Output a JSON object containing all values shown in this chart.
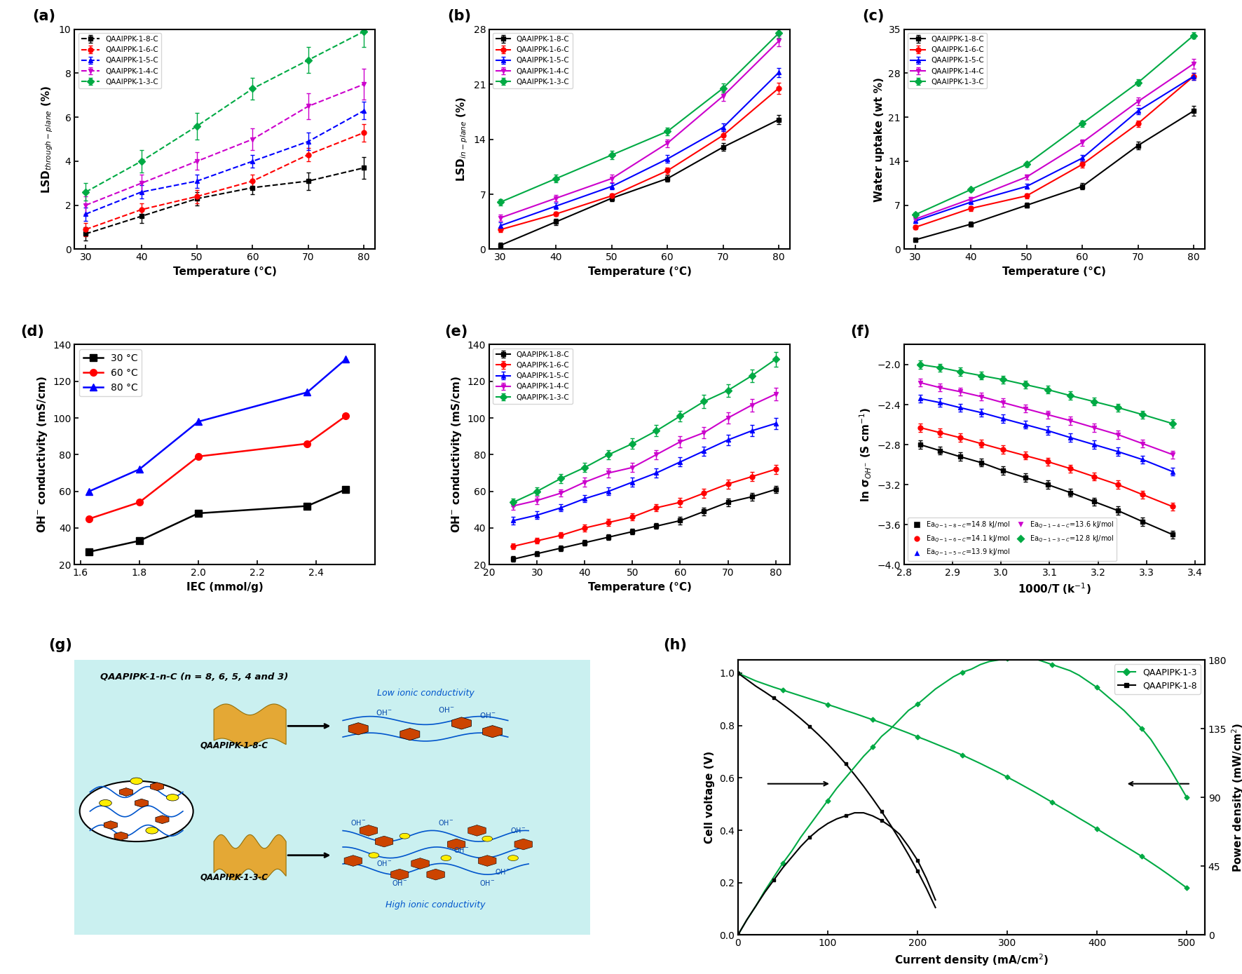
{
  "temp": [
    30,
    40,
    50,
    60,
    70,
    80
  ],
  "colors": {
    "8C": "#000000",
    "6C": "#ff0000",
    "5C": "#0000ff",
    "4C": "#cc00cc",
    "3C": "#00aa44"
  },
  "markers": {
    "8C": "s",
    "6C": "o",
    "5C": "^",
    "4C": "v",
    "3C": "D"
  },
  "panel_a": {
    "ylabel": "LSD$_{through-plane}$ (%)",
    "xlabel": "Temperature (°C)",
    "ylim": [
      0,
      10
    ],
    "yticks": [
      0,
      2,
      4,
      6,
      8,
      10
    ],
    "data": {
      "8C": [
        0.7,
        1.5,
        2.3,
        2.8,
        3.1,
        3.7
      ],
      "6C": [
        0.9,
        1.8,
        2.4,
        3.1,
        4.3,
        5.3
      ],
      "5C": [
        1.6,
        2.6,
        3.1,
        4.0,
        4.9,
        6.3
      ],
      "4C": [
        2.0,
        3.0,
        4.0,
        5.0,
        6.5,
        7.5
      ],
      "3C": [
        2.6,
        4.0,
        5.6,
        7.3,
        8.6,
        9.9
      ]
    },
    "errors": {
      "8C": [
        0.3,
        0.3,
        0.3,
        0.3,
        0.4,
        0.5
      ],
      "6C": [
        0.3,
        0.3,
        0.3,
        0.3,
        0.3,
        0.4
      ],
      "5C": [
        0.3,
        0.3,
        0.3,
        0.3,
        0.4,
        0.4
      ],
      "4C": [
        0.4,
        0.4,
        0.4,
        0.5,
        0.6,
        0.7
      ],
      "3C": [
        0.4,
        0.5,
        0.6,
        0.5,
        0.6,
        0.7
      ]
    }
  },
  "panel_b": {
    "ylabel": "LSD$_{in-plane}$ (%)",
    "xlabel": "Temperature (°C)",
    "ylim": [
      0,
      28
    ],
    "yticks": [
      0,
      7,
      14,
      21,
      28
    ],
    "data": {
      "8C": [
        0.5,
        3.5,
        6.5,
        9.0,
        13.0,
        16.5
      ],
      "6C": [
        2.5,
        4.5,
        6.8,
        10.0,
        14.5,
        20.5
      ],
      "5C": [
        3.0,
        5.5,
        8.0,
        11.5,
        15.5,
        22.5
      ],
      "4C": [
        4.0,
        6.5,
        9.0,
        13.5,
        19.5,
        26.5
      ],
      "3C": [
        6.0,
        9.0,
        12.0,
        15.0,
        20.5,
        27.5
      ]
    },
    "errors": {
      "8C": [
        0.3,
        0.4,
        0.4,
        0.4,
        0.5,
        0.6
      ],
      "6C": [
        0.3,
        0.3,
        0.3,
        0.4,
        0.5,
        0.7
      ],
      "5C": [
        0.4,
        0.4,
        0.4,
        0.5,
        0.5,
        0.6
      ],
      "4C": [
        0.4,
        0.4,
        0.5,
        0.5,
        0.6,
        0.7
      ],
      "3C": [
        0.4,
        0.5,
        0.5,
        0.5,
        0.6,
        0.6
      ]
    }
  },
  "panel_c": {
    "ylabel": "Water uptake (wt %)",
    "xlabel": "Temperature (°C)",
    "ylim": [
      0,
      35
    ],
    "yticks": [
      0,
      7,
      14,
      21,
      28,
      35
    ],
    "data": {
      "8C": [
        1.5,
        4.0,
        7.0,
        10.0,
        16.5,
        22.0
      ],
      "6C": [
        3.5,
        6.5,
        8.5,
        13.5,
        20.0,
        27.5
      ],
      "5C": [
        4.5,
        7.5,
        10.0,
        14.5,
        22.0,
        27.5
      ],
      "4C": [
        4.8,
        8.0,
        11.5,
        17.0,
        23.5,
        29.5
      ],
      "3C": [
        5.5,
        9.5,
        13.5,
        20.0,
        26.5,
        34.0
      ]
    },
    "errors": {
      "8C": [
        0.3,
        0.4,
        0.4,
        0.5,
        0.6,
        0.8
      ],
      "6C": [
        0.3,
        0.4,
        0.4,
        0.5,
        0.5,
        0.6
      ],
      "5C": [
        0.3,
        0.3,
        0.4,
        0.5,
        0.5,
        0.6
      ],
      "4C": [
        0.3,
        0.3,
        0.4,
        0.5,
        0.6,
        0.8
      ],
      "3C": [
        0.3,
        0.3,
        0.4,
        0.5,
        0.5,
        0.5
      ]
    }
  },
  "panel_d": {
    "ylabel": "OH$^{-}$ conductivity (mS/cm)",
    "xlabel": "IEC (mmol/g)",
    "ylim": [
      20,
      140
    ],
    "yticks": [
      20,
      40,
      60,
      80,
      100,
      120,
      140
    ],
    "xlim": [
      1.58,
      2.6
    ],
    "xticks": [
      1.6,
      1.8,
      2.0,
      2.2,
      2.4
    ],
    "data": {
      "30C": {
        "iec": [
          1.63,
          1.8,
          2.0,
          2.37,
          2.5
        ],
        "val": [
          27,
          33,
          48,
          52,
          61
        ]
      },
      "60C": {
        "iec": [
          1.63,
          1.8,
          2.0,
          2.37,
          2.5
        ],
        "val": [
          45,
          54,
          79,
          86,
          101
        ]
      },
      "80C": {
        "iec": [
          1.63,
          1.8,
          2.0,
          2.37,
          2.5
        ],
        "val": [
          60,
          72,
          98,
          114,
          132
        ]
      }
    },
    "colors": {
      "30C": "#000000",
      "60C": "#ff0000",
      "80C": "#0000ff"
    },
    "labels": {
      "30C": "30 °C",
      "60C": "60 °C",
      "80C": "80 °C"
    },
    "markers": {
      "30C": "s",
      "60C": "o",
      "80C": "^"
    }
  },
  "panel_e": {
    "ylabel": "OH$^{-}$ conductivity (mS/cm)",
    "xlabel": "Temperature (°C)",
    "ylim": [
      20,
      140
    ],
    "yticks": [
      20,
      40,
      60,
      80,
      100,
      120,
      140
    ],
    "temp": [
      25,
      30,
      35,
      40,
      45,
      50,
      55,
      60,
      65,
      70,
      75,
      80
    ],
    "data": {
      "8C": [
        23,
        26,
        29,
        32,
        35,
        38,
        41,
        44,
        49,
        54,
        57,
        61
      ],
      "6C": [
        30,
        33,
        36,
        40,
        43,
        46,
        51,
        54,
        59,
        64,
        68,
        72
      ],
      "5C": [
        44,
        47,
        51,
        56,
        60,
        65,
        70,
        76,
        82,
        88,
        93,
        97
      ],
      "4C": [
        52,
        55,
        59,
        65,
        70,
        73,
        80,
        87,
        92,
        100,
        107,
        113
      ],
      "3C": [
        54,
        60,
        67,
        73,
        80,
        86,
        93,
        101,
        109,
        115,
        123,
        132
      ]
    },
    "errors": {
      "8C": [
        1.5,
        1.5,
        1.5,
        1.5,
        1.5,
        1.5,
        1.5,
        2.0,
        2.0,
        2.0,
        2.0,
        2.0
      ],
      "6C": [
        1.5,
        1.5,
        1.5,
        2.0,
        2.0,
        2.0,
        2.0,
        2.5,
        2.5,
        2.5,
        2.5,
        2.5
      ],
      "5C": [
        2.0,
        2.0,
        2.0,
        2.0,
        2.0,
        2.5,
        2.5,
        2.5,
        2.5,
        3.0,
        3.0,
        3.0
      ],
      "4C": [
        2.0,
        2.0,
        2.0,
        2.5,
        2.5,
        2.5,
        2.5,
        3.0,
        3.0,
        3.0,
        3.5,
        3.5
      ],
      "3C": [
        2.0,
        2.0,
        2.5,
        2.5,
        2.5,
        3.0,
        3.0,
        3.0,
        3.5,
        3.5,
        3.5,
        4.0
      ]
    }
  },
  "panel_f": {
    "ylabel": "ln σ$_{OH^{-}}$ (S cm$^{-1}$)",
    "xlabel": "1000/T (k$^{-1}$)",
    "ylim": [
      -4.0,
      -1.8
    ],
    "yticks": [
      -4.0,
      -3.6,
      -3.2,
      -2.8,
      -2.4,
      -2.0
    ],
    "xlim": [
      2.8,
      3.42
    ],
    "xticks": [
      2.8,
      2.9,
      3.0,
      3.1,
      3.2,
      3.3,
      3.4
    ],
    "data": {
      "8C": {
        "x": [
          2.833,
          2.874,
          2.915,
          2.959,
          3.004,
          3.05,
          3.096,
          3.143,
          3.192,
          3.241,
          3.292,
          3.354
        ],
        "y": [
          -2.8,
          -2.86,
          -2.92,
          -2.98,
          -3.06,
          -3.13,
          -3.2,
          -3.28,
          -3.37,
          -3.46,
          -3.57,
          -3.7
        ]
      },
      "6C": {
        "x": [
          2.833,
          2.874,
          2.915,
          2.959,
          3.004,
          3.05,
          3.096,
          3.143,
          3.192,
          3.241,
          3.292,
          3.354
        ],
        "y": [
          -2.63,
          -2.68,
          -2.73,
          -2.79,
          -2.85,
          -2.91,
          -2.97,
          -3.04,
          -3.12,
          -3.2,
          -3.3,
          -3.42
        ]
      },
      "5C": {
        "x": [
          2.833,
          2.874,
          2.915,
          2.959,
          3.004,
          3.05,
          3.096,
          3.143,
          3.192,
          3.241,
          3.292,
          3.354
        ],
        "y": [
          -2.34,
          -2.38,
          -2.43,
          -2.48,
          -2.54,
          -2.6,
          -2.66,
          -2.73,
          -2.8,
          -2.87,
          -2.95,
          -3.07
        ]
      },
      "4C": {
        "x": [
          2.833,
          2.874,
          2.915,
          2.959,
          3.004,
          3.05,
          3.096,
          3.143,
          3.192,
          3.241,
          3.292,
          3.354
        ],
        "y": [
          -2.18,
          -2.23,
          -2.27,
          -2.32,
          -2.38,
          -2.44,
          -2.5,
          -2.56,
          -2.63,
          -2.7,
          -2.79,
          -2.9
        ]
      },
      "3C": {
        "x": [
          2.833,
          2.874,
          2.915,
          2.959,
          3.004,
          3.05,
          3.096,
          3.143,
          3.192,
          3.241,
          3.292,
          3.354
        ],
        "y": [
          -2.0,
          -2.03,
          -2.07,
          -2.11,
          -2.15,
          -2.2,
          -2.25,
          -2.31,
          -2.37,
          -2.43,
          -2.5,
          -2.59
        ]
      }
    },
    "errors": {
      "8C": 0.04,
      "6C": 0.04,
      "5C": 0.04,
      "4C": 0.04,
      "3C": 0.04
    }
  },
  "panel_h": {
    "xlabel": "Current density (mA/cm$^{2}$)",
    "ylabel_left": "Cell voltage (V)",
    "ylabel_right": "Power density (mW/cm$^{2}$)",
    "xlim": [
      0,
      520
    ],
    "ylim_left": [
      0,
      1.05
    ],
    "ylim_right": [
      0,
      180
    ],
    "yticks_left": [
      0.0,
      0.2,
      0.4,
      0.6,
      0.8,
      1.0
    ],
    "yticks_right": [
      0,
      45,
      90,
      135,
      180
    ],
    "xticks": [
      0,
      100,
      200,
      300,
      400,
      500
    ],
    "data": {
      "QAAPIPK-1-3": {
        "voltage_x": [
          0,
          10,
          20,
          30,
          40,
          50,
          60,
          70,
          80,
          90,
          100,
          110,
          120,
          130,
          140,
          150,
          160,
          170,
          180,
          190,
          200,
          210,
          220,
          230,
          240,
          250,
          260,
          270,
          280,
          290,
          300,
          310,
          320,
          330,
          340,
          350,
          360,
          370,
          380,
          390,
          400,
          410,
          420,
          430,
          440,
          450,
          460,
          470,
          480,
          490,
          500
        ],
        "voltage_y": [
          1.0,
          0.985,
          0.97,
          0.958,
          0.946,
          0.935,
          0.924,
          0.913,
          0.902,
          0.891,
          0.88,
          0.869,
          0.857,
          0.846,
          0.834,
          0.822,
          0.81,
          0.797,
          0.784,
          0.771,
          0.757,
          0.744,
          0.73,
          0.716,
          0.702,
          0.687,
          0.671,
          0.655,
          0.638,
          0.621,
          0.603,
          0.585,
          0.566,
          0.547,
          0.527,
          0.507,
          0.487,
          0.467,
          0.446,
          0.426,
          0.405,
          0.384,
          0.363,
          0.342,
          0.321,
          0.3,
          0.277,
          0.254,
          0.23,
          0.205,
          0.18
        ],
        "power_x": [
          0,
          10,
          20,
          30,
          40,
          50,
          60,
          70,
          80,
          90,
          100,
          110,
          120,
          130,
          140,
          150,
          160,
          170,
          180,
          190,
          200,
          210,
          220,
          230,
          240,
          250,
          260,
          270,
          280,
          290,
          300,
          310,
          320,
          330,
          340,
          350,
          360,
          370,
          380,
          390,
          400,
          410,
          420,
          430,
          440,
          450,
          460,
          470,
          480,
          490,
          500
        ],
        "power_y": [
          0,
          10,
          19,
          29,
          38,
          47,
          55,
          64,
          72,
          80,
          88,
          96,
          103,
          110,
          117,
          123,
          130,
          135,
          141,
          147,
          151,
          156,
          161,
          165,
          169,
          172,
          174,
          177,
          179,
          180,
          181,
          181,
          181,
          181,
          179,
          177,
          175,
          173,
          170,
          166,
          162,
          157,
          152,
          147,
          141,
          135,
          128,
          119,
          110,
          100,
          90
        ]
      },
      "QAAPIPK-1-8": {
        "voltage_x": [
          0,
          10,
          20,
          30,
          40,
          50,
          60,
          70,
          80,
          90,
          100,
          110,
          120,
          130,
          140,
          150,
          160,
          170,
          180,
          190,
          200,
          210,
          220
        ],
        "voltage_y": [
          1.0,
          0.975,
          0.95,
          0.928,
          0.905,
          0.88,
          0.854,
          0.826,
          0.796,
          0.764,
          0.73,
          0.693,
          0.654,
          0.612,
          0.568,
          0.521,
          0.472,
          0.42,
          0.365,
          0.307,
          0.245,
          0.178,
          0.105
        ],
        "power_x": [
          0,
          10,
          20,
          30,
          40,
          50,
          60,
          70,
          80,
          90,
          100,
          110,
          120,
          130,
          140,
          150,
          160,
          170,
          180,
          190,
          200,
          210,
          220
        ],
        "power_y": [
          0,
          10,
          19,
          28,
          36,
          44,
          51,
          58,
          64,
          69,
          73,
          76,
          78,
          80,
          80,
          78,
          75,
          71,
          66,
          58,
          49,
          37,
          23
        ]
      }
    },
    "colors": {
      "QAAPIPK-1-3": "#00aa44",
      "QAAPIPK-1-8": "#000000"
    }
  },
  "legend_labels": {
    "8C": "QAAIPPK-1-8-C",
    "6C": "QAAIPPK-1-6-C",
    "5C": "QAAIPPK-1-5-C",
    "4C": "QAAIPPK-1-4-C",
    "3C": "QAAIPPK-1-3-C"
  },
  "legend_labels_e": {
    "8C": "QAAPIPK-1-8-C",
    "6C": "QAAPIPK-1-6-C",
    "5C": "QAAPIPK-1-5-C",
    "4C": "QAAPIPK-1-4-C",
    "3C": "QAAPIPK-1-3-C"
  }
}
